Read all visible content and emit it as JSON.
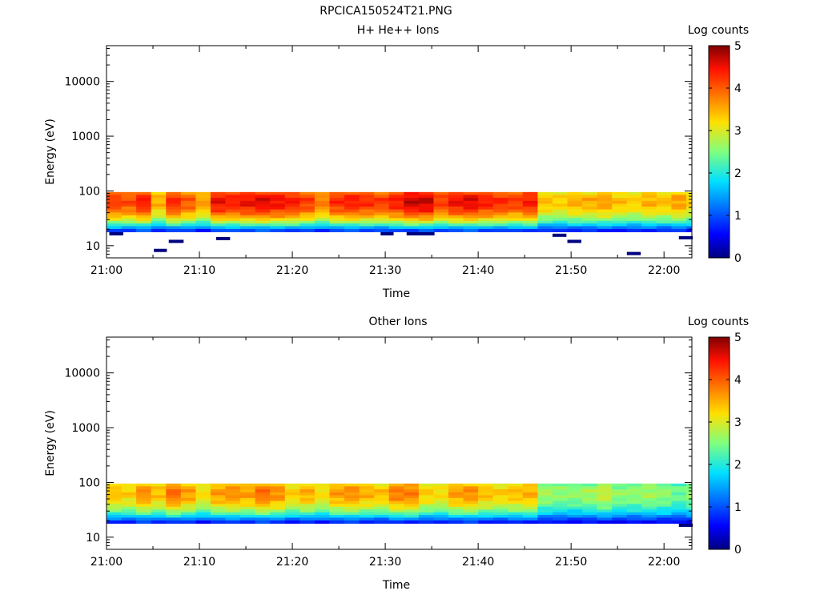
{
  "title": "RPCICA150524T21.PNG",
  "chart_data": [
    {
      "type": "heatmap",
      "title": "H+ He++ Ions",
      "xlabel": "Time",
      "ylabel": "Energy (eV)",
      "x_ticks": [
        "21:00",
        "21:10",
        "21:20",
        "21:30",
        "21:40",
        "21:50",
        "22:00"
      ],
      "x_range": [
        "21:00",
        "22:03"
      ],
      "y_scale": "log",
      "y_ticks": [
        10,
        100,
        1000,
        10000
      ],
      "y_tick_labels": [
        "10",
        "100",
        "1000",
        "10000"
      ],
      "ylim": [
        6,
        45000
      ],
      "colorbar": {
        "label": "Log counts",
        "range": [
          0,
          5
        ],
        "ticks": [
          "0",
          "1",
          "2",
          "3",
          "4",
          "5"
        ],
        "colormap": "jet"
      },
      "grid": false,
      "col_width_min": 1.6,
      "band_energy_ev": [
        90,
        80,
        70,
        62,
        55,
        49,
        43,
        38,
        34,
        30,
        27,
        24,
        21.5,
        19
      ],
      "time_min": [
        0.0,
        1.6,
        3.2,
        4.8,
        6.4,
        8.0,
        9.6,
        11.2,
        12.8,
        14.4,
        16.0,
        17.6,
        19.2,
        20.8,
        22.4,
        24.0,
        25.6,
        27.2,
        28.8,
        30.4,
        32.0,
        33.6,
        35.2,
        36.8,
        38.4,
        40.0,
        41.6,
        43.2,
        44.8,
        46.4,
        48.0,
        49.6,
        51.2,
        52.8,
        54.4,
        56.0,
        57.6,
        59.2,
        60.8,
        62.4
      ],
      "peak_log_counts": [
        4.2,
        4.1,
        4.4,
        3.5,
        4.3,
        4.0,
        3.6,
        4.5,
        4.4,
        4.5,
        4.6,
        4.5,
        4.4,
        4.2,
        3.8,
        4.3,
        4.4,
        4.3,
        4.2,
        4.4,
        4.7,
        4.7,
        4.2,
        4.5,
        4.6,
        4.4,
        4.3,
        4.2,
        4.4,
        3.4,
        3.3,
        3.5,
        3.5,
        3.6,
        3.4,
        3.3,
        3.5,
        3.4,
        3.6,
        3.3
      ],
      "low_energy_blips": [
        {
          "t_min": 0.3,
          "t_max": 1.8,
          "e_ev": 16.5
        },
        {
          "t_min": 5.1,
          "t_max": 6.5,
          "e_ev": 8.2
        },
        {
          "t_min": 6.7,
          "t_max": 8.3,
          "e_ev": 12
        },
        {
          "t_min": 11.8,
          "t_max": 13.3,
          "e_ev": 13.5
        },
        {
          "t_min": 29.5,
          "t_max": 30.9,
          "e_ev": 16.5
        },
        {
          "t_min": 32.3,
          "t_max": 35.3,
          "e_ev": 16.5
        },
        {
          "t_min": 48.0,
          "t_max": 49.5,
          "e_ev": 15.5
        },
        {
          "t_min": 49.6,
          "t_max": 51.1,
          "e_ev": 12
        },
        {
          "t_min": 56.0,
          "t_max": 57.5,
          "e_ev": 7.2
        },
        {
          "t_min": 61.6,
          "t_max": 63.1,
          "e_ev": 14
        }
      ]
    },
    {
      "type": "heatmap",
      "title": "Other Ions",
      "xlabel": "Time",
      "ylabel": "Energy (eV)",
      "x_ticks": [
        "21:00",
        "21:10",
        "21:20",
        "21:30",
        "21:40",
        "21:50",
        "22:00"
      ],
      "x_range": [
        "21:00",
        "22:03"
      ],
      "y_scale": "log",
      "y_ticks": [
        10,
        100,
        1000,
        10000
      ],
      "y_tick_labels": [
        "10",
        "100",
        "1000",
        "10000"
      ],
      "ylim": [
        6,
        45000
      ],
      "colorbar": {
        "label": "Log counts",
        "range": [
          0,
          5
        ],
        "ticks": [
          "0",
          "1",
          "2",
          "3",
          "4",
          "5"
        ],
        "colormap": "jet"
      },
      "grid": false,
      "col_width_min": 1.6,
      "band_energy_ev": [
        90,
        80,
        70,
        62,
        55,
        49,
        43,
        38,
        34,
        30,
        27,
        24,
        21.5,
        19
      ],
      "time_min": [
        0.0,
        1.6,
        3.2,
        4.8,
        6.4,
        8.0,
        9.6,
        11.2,
        12.8,
        14.4,
        16.0,
        17.6,
        19.2,
        20.8,
        22.4,
        24.0,
        25.6,
        27.2,
        28.8,
        30.4,
        32.0,
        33.6,
        35.2,
        36.8,
        38.4,
        40.0,
        41.6,
        43.2,
        44.8,
        46.4,
        48.0,
        49.6,
        51.2,
        52.8,
        54.4,
        56.0,
        57.6,
        59.2,
        60.8,
        62.4
      ],
      "peak_log_counts": [
        3.4,
        3.3,
        3.7,
        3.4,
        3.9,
        3.6,
        3.2,
        3.6,
        3.7,
        3.6,
        3.9,
        3.7,
        3.3,
        3.5,
        3.2,
        3.6,
        3.7,
        3.5,
        3.4,
        3.8,
        3.8,
        3.3,
        3.2,
        3.6,
        3.7,
        3.4,
        3.3,
        3.4,
        3.5,
        2.7,
        2.6,
        2.6,
        2.7,
        2.9,
        2.6,
        2.6,
        2.7,
        2.6,
        2.4,
        2.6
      ],
      "low_energy_blips": [
        {
          "t_min": 61.6,
          "t_max": 63.1,
          "e_ev": 16.5
        }
      ]
    }
  ]
}
